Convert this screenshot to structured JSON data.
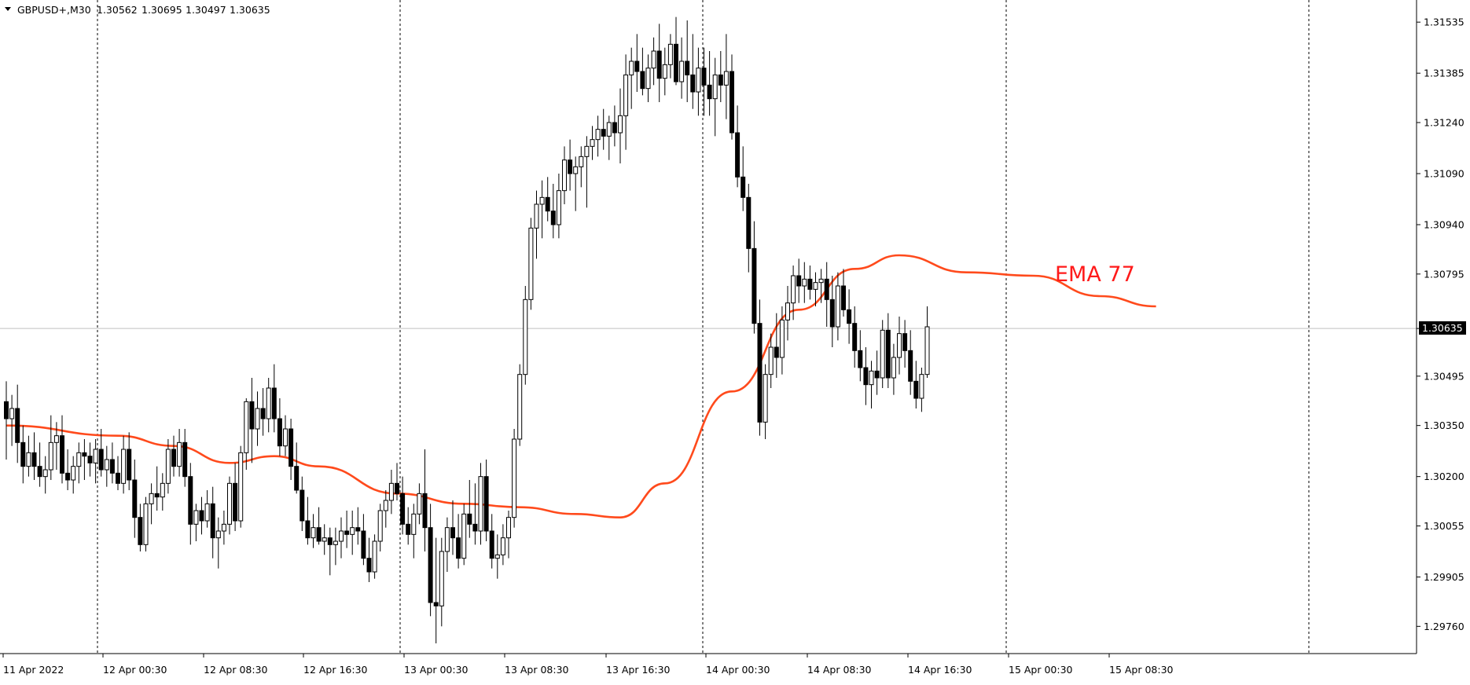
{
  "symbol_header": {
    "symbol": "GBPUSD+,M30",
    "open": "1.30562",
    "high": "1.30695",
    "low": "1.30497",
    "close": "1.30635"
  },
  "indicator_label": "EMA 77",
  "current_price_label": "1.30635",
  "colors": {
    "background": "#ffffff",
    "grid": "#000000",
    "candle": "#000000",
    "ema": "#ff4a1c",
    "indicator_label": "#ff1a1a",
    "price_tag_bg": "#000000",
    "price_tag_text": "#ffffff",
    "current_price_line": "#c0c0c0"
  },
  "chart_data": {
    "type": "candlestick",
    "ylim": [
      1.2968,
      1.316
    ],
    "price_ticks": [
      "1.31535",
      "1.31385",
      "1.31240",
      "1.31090",
      "1.30940",
      "1.30795",
      "1.30635",
      "1.30495",
      "1.30350",
      "1.30200",
      "1.30055",
      "1.29905",
      "1.29760"
    ],
    "time_labels": [
      "11 Apr 2022",
      "12 Apr 00:30",
      "12 Apr 08:30",
      "12 Apr 16:30",
      "13 Apr 00:30",
      "13 Apr 08:30",
      "13 Apr 16:30",
      "14 Apr 00:30",
      "14 Apr 08:30",
      "14 Apr 16:30",
      "15 Apr 00:30",
      "15 Apr 08:30"
    ],
    "day_separators": [
      "12 Apr",
      "13 Apr",
      "14 Apr",
      "15 Apr",
      "16 Apr"
    ],
    "current_price": 1.30635,
    "ema_period": 77,
    "ema": [
      {
        "bar": 0,
        "value": 1.3035
      },
      {
        "bar": 20,
        "value": 1.3032
      },
      {
        "bar": 30,
        "value": 1.3029
      },
      {
        "bar": 40,
        "value": 1.3024
      },
      {
        "bar": 48,
        "value": 1.3026
      },
      {
        "bar": 56,
        "value": 1.3023
      },
      {
        "bar": 70,
        "value": 1.3015
      },
      {
        "bar": 82,
        "value": 1.3012
      },
      {
        "bar": 92,
        "value": 1.3011
      },
      {
        "bar": 102,
        "value": 1.3009
      },
      {
        "bar": 110,
        "value": 1.3008
      },
      {
        "bar": 118,
        "value": 1.3018
      },
      {
        "bar": 130,
        "value": 1.3045
      },
      {
        "bar": 142,
        "value": 1.3069
      },
      {
        "bar": 152,
        "value": 1.3081
      },
      {
        "bar": 160,
        "value": 1.3085
      },
      {
        "bar": 172,
        "value": 1.308
      },
      {
        "bar": 184,
        "value": 1.3079
      },
      {
        "bar": 196,
        "value": 1.3073
      },
      {
        "bar": 206,
        "value": 1.307
      }
    ],
    "ohlc": [
      [
        1.3042,
        1.3048,
        1.3025,
        1.3037
      ],
      [
        1.3037,
        1.3044,
        1.3029,
        1.304
      ],
      [
        1.304,
        1.3047,
        1.3024,
        1.303
      ],
      [
        1.303,
        1.3035,
        1.3018,
        1.3023
      ],
      [
        1.3023,
        1.3032,
        1.302,
        1.3027
      ],
      [
        1.3027,
        1.3033,
        1.3019,
        1.3023
      ],
      [
        1.3023,
        1.303,
        1.3017,
        1.302
      ],
      [
        1.302,
        1.3026,
        1.3015,
        1.3022
      ],
      [
        1.3022,
        1.3038,
        1.3019,
        1.303
      ],
      [
        1.303,
        1.3036,
        1.3022,
        1.3032
      ],
      [
        1.3032,
        1.3038,
        1.3018,
        1.3021
      ],
      [
        1.3021,
        1.3028,
        1.3016,
        1.3019
      ],
      [
        1.3019,
        1.3026,
        1.3015,
        1.3023
      ],
      [
        1.3023,
        1.303,
        1.3018,
        1.3027
      ],
      [
        1.3027,
        1.3031,
        1.3019,
        1.3026
      ],
      [
        1.3026,
        1.303,
        1.302,
        1.3024
      ],
      [
        1.3024,
        1.3031,
        1.3018,
        1.3028
      ],
      [
        1.3028,
        1.3034,
        1.302,
        1.3022
      ],
      [
        1.3022,
        1.3029,
        1.3017,
        1.3025
      ],
      [
        1.3025,
        1.303,
        1.3018,
        1.3021
      ],
      [
        1.3021,
        1.3026,
        1.3016,
        1.3018
      ],
      [
        1.3018,
        1.3032,
        1.3015,
        1.3028
      ],
      [
        1.3028,
        1.3033,
        1.3016,
        1.3019
      ],
      [
        1.3019,
        1.3025,
        1.3002,
        1.3008
      ],
      [
        1.3008,
        1.3012,
        1.2998,
        1.3
      ],
      [
        1.3,
        1.3014,
        1.2998,
        1.3012
      ],
      [
        1.3012,
        1.3018,
        1.3006,
        1.3015
      ],
      [
        1.3015,
        1.3023,
        1.301,
        1.3014
      ],
      [
        1.3014,
        1.3021,
        1.301,
        1.3018
      ],
      [
        1.3018,
        1.3031,
        1.3015,
        1.3028
      ],
      [
        1.3028,
        1.3032,
        1.302,
        1.3023
      ],
      [
        1.3023,
        1.3034,
        1.302,
        1.303
      ],
      [
        1.303,
        1.3034,
        1.3017,
        1.302
      ],
      [
        1.302,
        1.3024,
        1.3,
        1.3006
      ],
      [
        1.3006,
        1.3012,
        1.3001,
        1.301
      ],
      [
        1.301,
        1.3014,
        1.3003,
        1.3007
      ],
      [
        1.3007,
        1.3016,
        1.3005,
        1.3012
      ],
      [
        1.3012,
        1.3017,
        1.2996,
        1.3002
      ],
      [
        1.3002,
        1.3008,
        1.2993,
        1.3004
      ],
      [
        1.3004,
        1.301,
        1.3,
        1.3006
      ],
      [
        1.3006,
        1.302,
        1.3003,
        1.3018
      ],
      [
        1.3018,
        1.3024,
        1.3004,
        1.3007
      ],
      [
        1.3007,
        1.3029,
        1.3005,
        1.3027
      ],
      [
        1.3027,
        1.3043,
        1.3022,
        1.3042
      ],
      [
        1.3042,
        1.3049,
        1.3024,
        1.3034
      ],
      [
        1.3034,
        1.3045,
        1.3029,
        1.304
      ],
      [
        1.304,
        1.3046,
        1.3032,
        1.3037
      ],
      [
        1.3037,
        1.3049,
        1.3033,
        1.3046
      ],
      [
        1.3046,
        1.3053,
        1.3033,
        1.3037
      ],
      [
        1.3037,
        1.3043,
        1.3026,
        1.3029
      ],
      [
        1.3029,
        1.3038,
        1.3026,
        1.3034
      ],
      [
        1.3034,
        1.3037,
        1.3019,
        1.3023
      ],
      [
        1.3023,
        1.303,
        1.3015,
        1.3016
      ],
      [
        1.3016,
        1.302,
        1.3004,
        1.3007
      ],
      [
        1.3007,
        1.3014,
        1.3,
        1.3002
      ],
      [
        1.3002,
        1.3009,
        1.2999,
        1.3005
      ],
      [
        1.3005,
        1.3011,
        1.3,
        1.3001
      ],
      [
        1.3001,
        1.3006,
        1.2997,
        1.3002
      ],
      [
        1.3002,
        1.3005,
        1.2991,
        1.3
      ],
      [
        1.3,
        1.3005,
        1.2994,
        1.3001
      ],
      [
        1.3001,
        1.3008,
        1.2996,
        1.3004
      ],
      [
        1.3004,
        1.301,
        1.2999,
        1.3003
      ],
      [
        1.3003,
        1.301,
        1.2997,
        1.3005
      ],
      [
        1.3005,
        1.3011,
        1.3,
        1.3004
      ],
      [
        1.3004,
        1.3009,
        1.2994,
        1.2996
      ],
      [
        1.2996,
        1.3002,
        1.2989,
        1.2992
      ],
      [
        1.2992,
        1.3003,
        1.299,
        1.3001
      ],
      [
        1.3001,
        1.3012,
        1.2998,
        1.301
      ],
      [
        1.301,
        1.3016,
        1.3005,
        1.3013
      ],
      [
        1.3013,
        1.3022,
        1.3009,
        1.3018
      ],
      [
        1.3018,
        1.3024,
        1.3013,
        1.3015
      ],
      [
        1.3015,
        1.302,
        1.3003,
        1.3006
      ],
      [
        1.3006,
        1.3011,
        1.3,
        1.3003
      ],
      [
        1.3003,
        1.3012,
        1.2996,
        1.3009
      ],
      [
        1.3009,
        1.3018,
        1.3006,
        1.3015
      ],
      [
        1.3015,
        1.3028,
        1.2998,
        1.3005
      ],
      [
        1.3005,
        1.3012,
        1.2979,
        1.2983
      ],
      [
        1.2983,
        1.3002,
        1.2971,
        1.2982
      ],
      [
        1.2982,
        1.3002,
        1.2976,
        1.2998
      ],
      [
        1.2998,
        1.3008,
        1.2992,
        1.3005
      ],
      [
        1.3005,
        1.3013,
        1.2997,
        1.3002
      ],
      [
        1.3002,
        1.3009,
        1.2993,
        1.2996
      ],
      [
        1.2996,
        1.3012,
        1.2994,
        1.3009
      ],
      [
        1.3009,
        1.3019,
        1.3002,
        1.3006
      ],
      [
        1.3006,
        1.3018,
        1.3,
        1.3004
      ],
      [
        1.3004,
        1.3024,
        1.3,
        1.302
      ],
      [
        1.302,
        1.3025,
        1.3001,
        1.3004
      ],
      [
        1.3004,
        1.3009,
        1.2993,
        1.2996
      ],
      [
        1.2996,
        1.3003,
        1.299,
        1.2997
      ],
      [
        1.2997,
        1.3006,
        1.2994,
        1.3002
      ],
      [
        1.3002,
        1.301,
        1.2996,
        1.3008
      ],
      [
        1.3008,
        1.3034,
        1.3005,
        1.3031
      ],
      [
        1.3031,
        1.3053,
        1.3029,
        1.305
      ],
      [
        1.305,
        1.3076,
        1.3047,
        1.3072
      ],
      [
        1.3072,
        1.3096,
        1.3069,
        1.3093
      ],
      [
        1.3093,
        1.3104,
        1.3084,
        1.31
      ],
      [
        1.31,
        1.3107,
        1.309,
        1.3102
      ],
      [
        1.3102,
        1.3108,
        1.3095,
        1.3098
      ],
      [
        1.3098,
        1.3106,
        1.309,
        1.3094
      ],
      [
        1.3094,
        1.3109,
        1.309,
        1.3104
      ],
      [
        1.3104,
        1.3117,
        1.31,
        1.3113
      ],
      [
        1.3113,
        1.3119,
        1.3104,
        1.3109
      ],
      [
        1.3109,
        1.3114,
        1.3098,
        1.3111
      ],
      [
        1.3111,
        1.3117,
        1.3105,
        1.3114
      ],
      [
        1.3114,
        1.312,
        1.3099,
        1.3117
      ],
      [
        1.3117,
        1.3123,
        1.3113,
        1.3119
      ],
      [
        1.3119,
        1.3126,
        1.3114,
        1.3122
      ],
      [
        1.3122,
        1.3128,
        1.3116,
        1.312
      ],
      [
        1.312,
        1.3126,
        1.3113,
        1.3124
      ],
      [
        1.3124,
        1.3129,
        1.3117,
        1.3121
      ],
      [
        1.3121,
        1.3134,
        1.3112,
        1.3126
      ],
      [
        1.3126,
        1.3144,
        1.3116,
        1.3138
      ],
      [
        1.3138,
        1.3146,
        1.3128,
        1.3142
      ],
      [
        1.3142,
        1.315,
        1.3133,
        1.3139
      ],
      [
        1.3139,
        1.3146,
        1.3132,
        1.3134
      ],
      [
        1.3134,
        1.3144,
        1.313,
        1.314
      ],
      [
        1.314,
        1.3149,
        1.3135,
        1.3145
      ],
      [
        1.3145,
        1.3153,
        1.313,
        1.3137
      ],
      [
        1.3137,
        1.3146,
        1.3132,
        1.3141
      ],
      [
        1.3141,
        1.315,
        1.3137,
        1.3147
      ],
      [
        1.3147,
        1.3155,
        1.3135,
        1.3136
      ],
      [
        1.3136,
        1.3149,
        1.3131,
        1.3142
      ],
      [
        1.3142,
        1.3154,
        1.313,
        1.3138
      ],
      [
        1.3138,
        1.315,
        1.3128,
        1.3133
      ],
      [
        1.3133,
        1.3146,
        1.3126,
        1.314
      ],
      [
        1.314,
        1.3146,
        1.3126,
        1.3135
      ],
      [
        1.3135,
        1.3145,
        1.3126,
        1.3131
      ],
      [
        1.3131,
        1.3143,
        1.312,
        1.3138
      ],
      [
        1.3138,
        1.3145,
        1.313,
        1.3135
      ],
      [
        1.3135,
        1.315,
        1.3125,
        1.3139
      ],
      [
        1.3139,
        1.3144,
        1.3119,
        1.3121
      ],
      [
        1.3121,
        1.3129,
        1.3105,
        1.3108
      ],
      [
        1.3108,
        1.3117,
        1.3098,
        1.3102
      ],
      [
        1.3102,
        1.3106,
        1.308,
        1.3087
      ],
      [
        1.3087,
        1.3095,
        1.3062,
        1.3065
      ],
      [
        1.3065,
        1.3072,
        1.3032,
        1.3036
      ],
      [
        1.3036,
        1.3053,
        1.3031,
        1.305
      ],
      [
        1.305,
        1.3062,
        1.3046,
        1.3058
      ],
      [
        1.3058,
        1.3068,
        1.3049,
        1.3055
      ],
      [
        1.3055,
        1.307,
        1.305,
        1.3066
      ],
      [
        1.3066,
        1.3076,
        1.306,
        1.3071
      ],
      [
        1.3071,
        1.3082,
        1.3066,
        1.3079
      ],
      [
        1.3079,
        1.3084,
        1.3071,
        1.3076
      ],
      [
        1.3076,
        1.3083,
        1.3071,
        1.3078
      ],
      [
        1.3078,
        1.3082,
        1.3072,
        1.3075
      ],
      [
        1.3075,
        1.308,
        1.307,
        1.3077
      ],
      [
        1.3077,
        1.3081,
        1.3071,
        1.3078
      ],
      [
        1.3078,
        1.3083,
        1.3064,
        1.3072
      ],
      [
        1.3072,
        1.3079,
        1.3058,
        1.3064
      ],
      [
        1.3064,
        1.308,
        1.306,
        1.3076
      ],
      [
        1.3076,
        1.3081,
        1.3067,
        1.3069
      ],
      [
        1.3069,
        1.3075,
        1.3059,
        1.3065
      ],
      [
        1.3065,
        1.307,
        1.3052,
        1.3057
      ],
      [
        1.3057,
        1.3063,
        1.3048,
        1.3052
      ],
      [
        1.3052,
        1.3058,
        1.3041,
        1.3047
      ],
      [
        1.3047,
        1.3054,
        1.304,
        1.3051
      ],
      [
        1.3051,
        1.3057,
        1.3044,
        1.3049
      ],
      [
        1.3049,
        1.3066,
        1.3046,
        1.3063
      ],
      [
        1.3063,
        1.3068,
        1.3046,
        1.3049
      ],
      [
        1.3049,
        1.3059,
        1.3044,
        1.3055
      ],
      [
        1.3055,
        1.3067,
        1.305,
        1.3062
      ],
      [
        1.3062,
        1.3066,
        1.3052,
        1.3057
      ],
      [
        1.3057,
        1.3063,
        1.3044,
        1.3048
      ],
      [
        1.3048,
        1.3054,
        1.304,
        1.3043
      ],
      [
        1.3043,
        1.3052,
        1.3039,
        1.305
      ],
      [
        1.305,
        1.307,
        1.3049,
        1.3064
      ]
    ]
  }
}
